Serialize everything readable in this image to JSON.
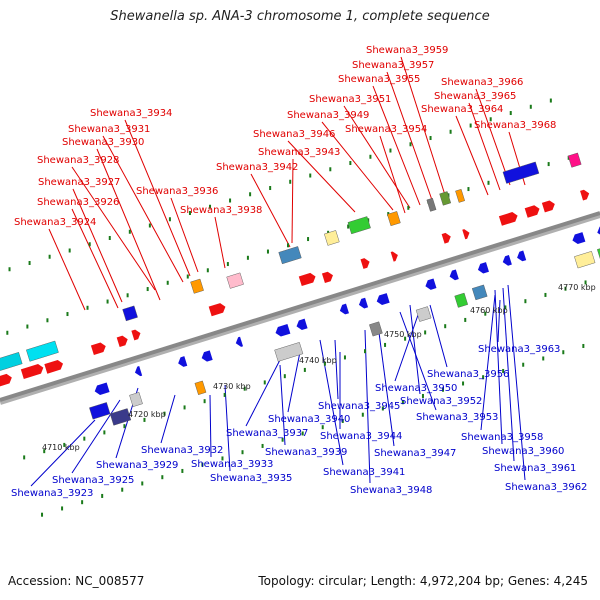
{
  "title": "Shewanella sp. ANA-3 chromosome 1, complete sequence",
  "footer": {
    "accession": "Accession: NC_008577",
    "summary": "Topology: circular; Length: 4,972,204 bp; Genes: 4,245"
  },
  "colors": {
    "plus_label": "#e00000",
    "minus_label": "#0000cc",
    "backbone": "#888888",
    "tick": "#1a7a1a"
  },
  "scale": [
    {
      "label": "4710 kbp"
    },
    {
      "label": "4720 kbp"
    },
    {
      "label": "4730 kbp"
    },
    {
      "label": "4740 kbp"
    },
    {
      "label": "4750 kbp"
    },
    {
      "label": "4760 kbp"
    },
    {
      "label": "4770 kbp"
    }
  ],
  "plus_labels": [
    "Shewana3_3959",
    "Shewana3_3957",
    "Shewana3_3955",
    "Shewana3_3951",
    "Shewana3_3949",
    "Shewana3_3946",
    "Shewana3_3954",
    "Shewana3_3943",
    "Shewana3_3942",
    "Shewana3_3934",
    "Shewana3_3931",
    "Shewana3_3930",
    "Shewana3_3928",
    "Shewana3_3927",
    "Shewana3_3926",
    "Shewana3_3924",
    "Shewana3_3936",
    "Shewana3_3938",
    "Shewana3_3966",
    "Shewana3_3965",
    "Shewana3_3964",
    "Shewana3_3968"
  ],
  "minus_labels": [
    "Shewana3_3963",
    "Shewana3_3956",
    "Shewana3_3950",
    "Shewana3_3952",
    "Shewana3_3953",
    "Shewana3_3958",
    "Shewana3_3960",
    "Shewana3_3961",
    "Shewana3_3962",
    "Shewana3_3945",
    "Shewana3_3940",
    "Shewana3_3937",
    "Shewana3_3944",
    "Shewana3_3939",
    "Shewana3_3947",
    "Shewana3_3941",
    "Shewana3_3948",
    "Shewana3_3932",
    "Shewana3_3929",
    "Shewana3_3933",
    "Shewana3_3925",
    "Shewana3_3935",
    "Shewana3_3923"
  ]
}
